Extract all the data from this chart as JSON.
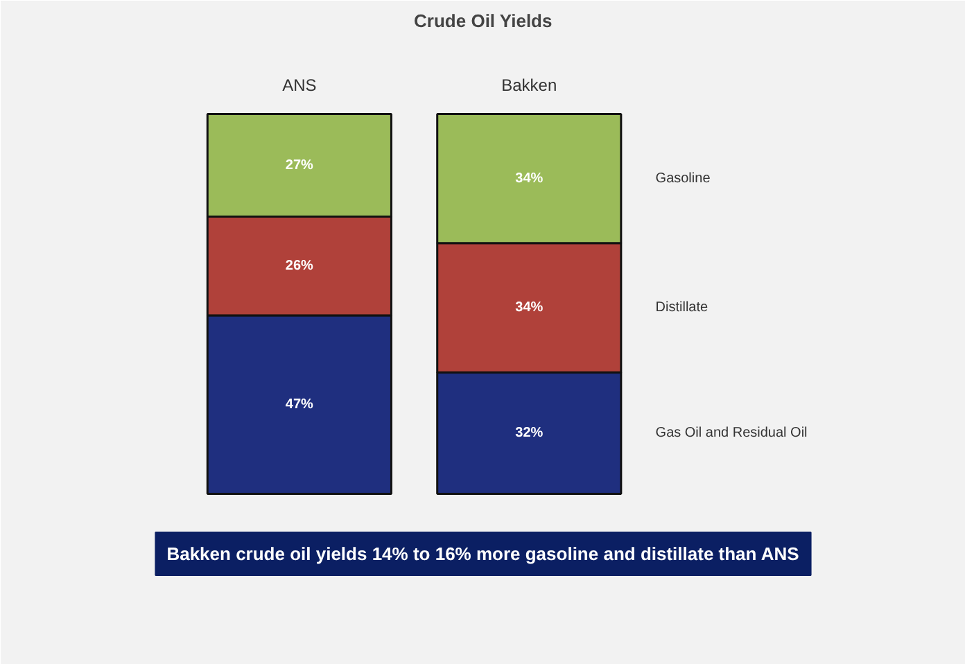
{
  "chart_data": {
    "type": "bar",
    "title": "Crude Oil Yields",
    "categories": [
      "ANS",
      "Bakken"
    ],
    "stacked": true,
    "series": [
      {
        "name": "Gas Oil and Residual Oil",
        "color": "#1f2f7f",
        "values": [
          47,
          32
        ],
        "value_labels": [
          "47%",
          "32%"
        ]
      },
      {
        "name": "Distillate",
        "color": "#b0413a",
        "values": [
          26,
          34
        ],
        "value_labels": [
          "26%",
          "34%"
        ]
      },
      {
        "name": "Gasoline",
        "color": "#9bbb59",
        "values": [
          27,
          34
        ],
        "value_labels": [
          "27%",
          "34%"
        ]
      }
    ],
    "annotations": [
      "Bakken crude oil yields 14% to 16% more gasoline and distillate than ANS"
    ]
  }
}
